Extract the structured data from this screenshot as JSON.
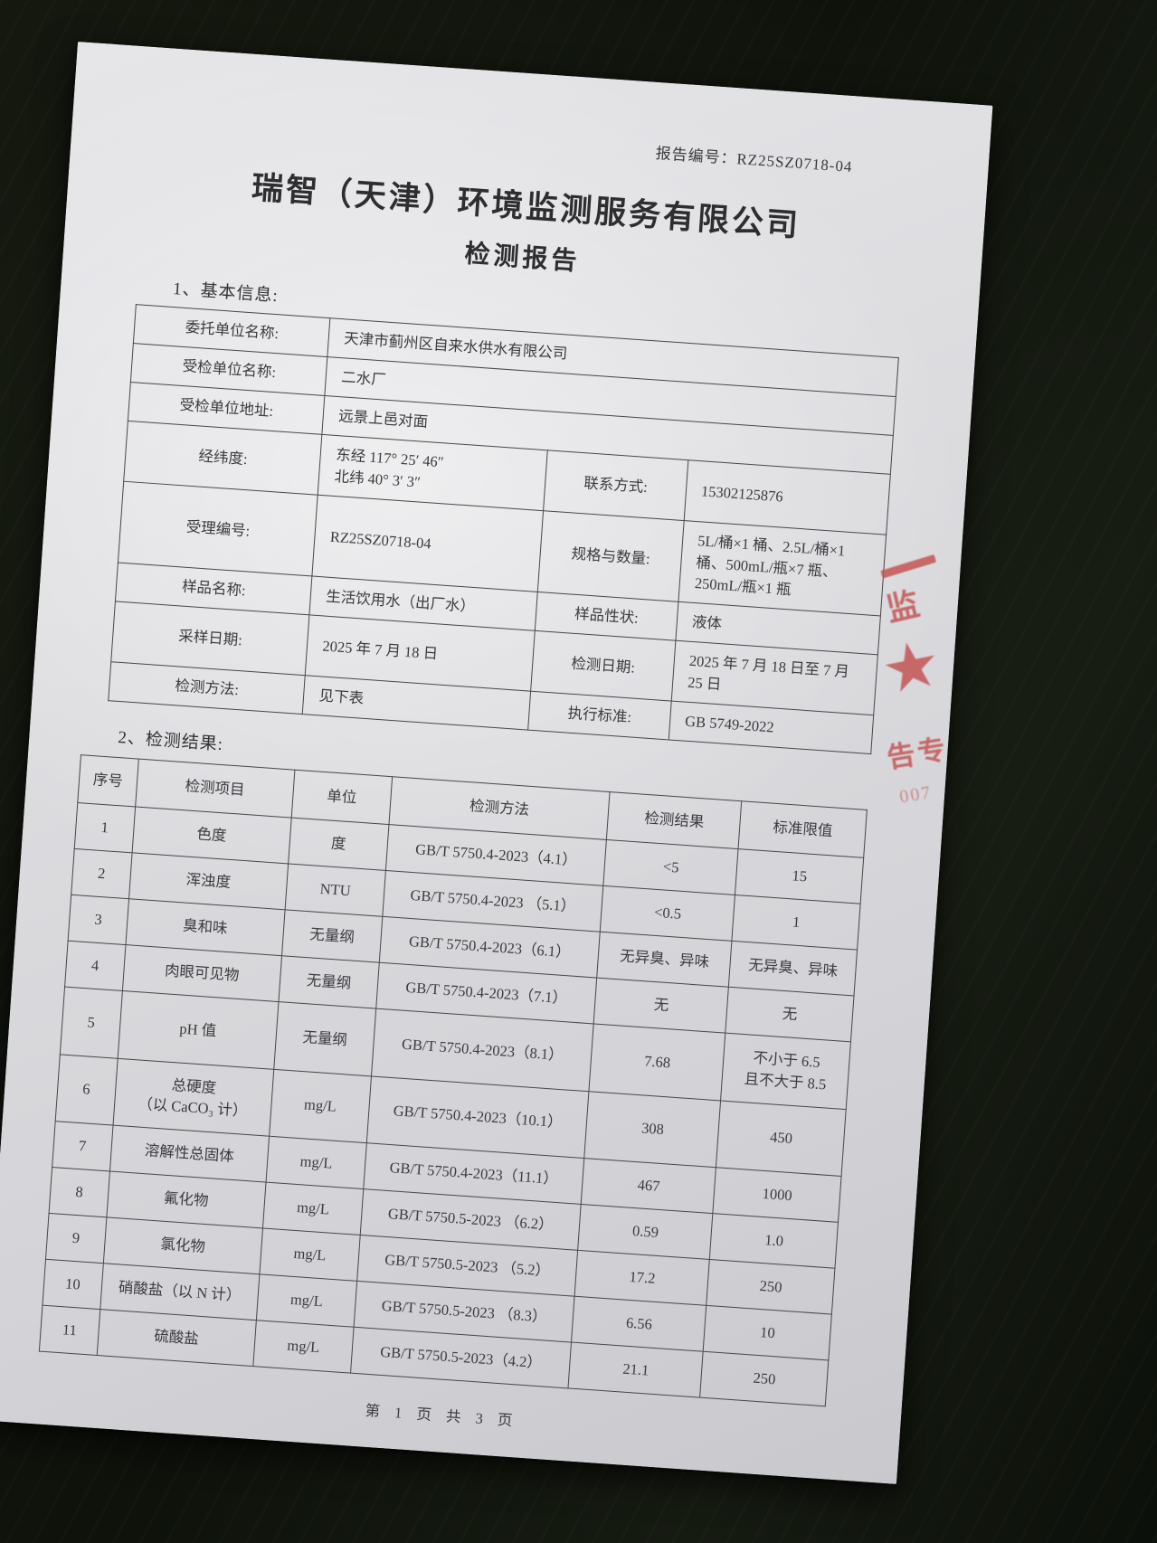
{
  "page": {
    "report_no_label": "报告编号：",
    "report_no": "RZ25SZ0718-04",
    "title": "瑞智（天津）环境监测服务有限公司",
    "subtitle": "检测报告",
    "section1_label": "1、基本信息:",
    "section2_label": "2、检测结果:",
    "footer": "第 1 页 共 3 页"
  },
  "basic_info": {
    "rows": [
      {
        "label": "委托单位名称:",
        "value": "天津市蓟州区自来水供水有限公司"
      },
      {
        "label": "受检单位名称:",
        "value": "二水厂"
      },
      {
        "label": "受检单位地址:",
        "value": "远景上邑对面"
      },
      {
        "label": "经纬度:",
        "value": "东经 117° 25′ 46″\n北纬 40° 3′ 3″",
        "label2": "联系方式:",
        "value2": "15302125876"
      },
      {
        "label": "受理编号:",
        "value": "RZ25SZ0718-04",
        "label2": "规格与数量:",
        "value2": "5L/桶×1 桶、2.5L/桶×1 桶、500mL/瓶×7 瓶、250mL/瓶×1 瓶"
      },
      {
        "label": "样品名称:",
        "value": "生活饮用水（出厂水）",
        "label2": "样品性状:",
        "value2": "液体"
      },
      {
        "label": "采样日期:",
        "value": "2025 年 7 月 18 日",
        "label2": "检测日期:",
        "value2": "2025 年 7 月 18 日至 7 月 25 日"
      },
      {
        "label": "检测方法:",
        "value": "见下表",
        "label2": "执行标准:",
        "value2": "GB 5749-2022"
      }
    ]
  },
  "results": {
    "headers": [
      "序号",
      "检测项目",
      "单位",
      "检测方法",
      "检测结果",
      "标准限值"
    ],
    "rows": [
      [
        "1",
        "色度",
        "度",
        "GB/T 5750.4-2023（4.1）",
        "<5",
        "15"
      ],
      [
        "2",
        "浑浊度",
        "NTU",
        "GB/T 5750.4-2023 （5.1）",
        "<0.5",
        "1"
      ],
      [
        "3",
        "臭和味",
        "无量纲",
        "GB/T 5750.4-2023（6.1）",
        "无异臭、异味",
        "无异臭、异味"
      ],
      [
        "4",
        "肉眼可见物",
        "无量纲",
        "GB/T 5750.4-2023（7.1）",
        "无",
        "无"
      ],
      [
        "5",
        "pH 值",
        "无量纲",
        "GB/T 5750.4-2023（8.1）",
        "7.68",
        "不小于 6.5\n且不大于 8.5"
      ],
      [
        "6",
        "总硬度\n（以 CaCO₃ 计）",
        "mg/L",
        "GB/T 5750.4-2023（10.1）",
        "308",
        "450"
      ],
      [
        "7",
        "溶解性总固体",
        "mg/L",
        "GB/T 5750.4-2023（11.1）",
        "467",
        "1000"
      ],
      [
        "8",
        "氟化物",
        "mg/L",
        "GB/T 5750.5-2023 （6.2）",
        "0.59",
        "1.0"
      ],
      [
        "9",
        "氯化物",
        "mg/L",
        "GB/T 5750.5-2023 （5.2）",
        "17.2",
        "250"
      ],
      [
        "10",
        "硝酸盐（以 N 计）",
        "mg/L",
        "GB/T 5750.5-2023 （8.3）",
        "6.56",
        "10"
      ],
      [
        "11",
        "硫酸盐",
        "mg/L",
        "GB/T 5750.5-2023（4.2）",
        "21.1",
        "250"
      ]
    ]
  },
  "stamp": {
    "top_char": "监",
    "star": "★",
    "bottom_chars": "告专",
    "digits": "007",
    "color": "#c4504f"
  }
}
